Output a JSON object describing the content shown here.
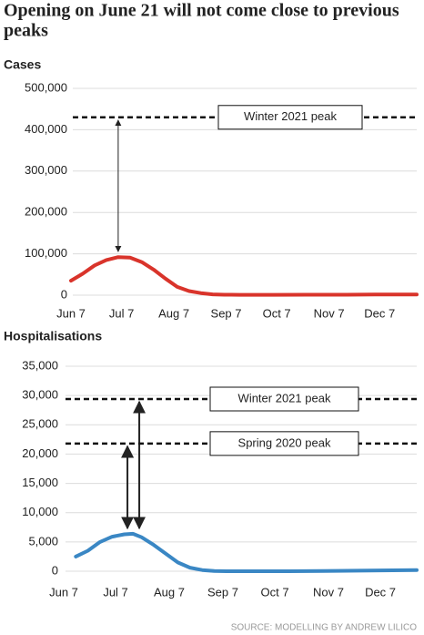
{
  "title": "Opening on June 21 will not come close to previous peaks",
  "source": "SOURCE: MODELLING BY ANDREW LILICO",
  "chart_data": [
    {
      "type": "line",
      "title": "Cases",
      "x": [
        0,
        7,
        14,
        21,
        28,
        35,
        42,
        49,
        56,
        63,
        70,
        77,
        84,
        91,
        100,
        120,
        140,
        160,
        180,
        205
      ],
      "series": [
        {
          "color": "#d9342b",
          "values": [
            35000,
            52000,
            72000,
            85000,
            92000,
            91000,
            80000,
            62000,
            40000,
            20000,
            10000,
            5000,
            2000,
            1000,
            800,
            800,
            1000,
            1200,
            1500,
            1800
          ]
        }
      ],
      "xlim": [
        0,
        205
      ],
      "xticks": [
        {
          "value": 0,
          "label": "Jun 7"
        },
        {
          "value": 30,
          "label": "Jul 7"
        },
        {
          "value": 61,
          "label": "Aug 7"
        },
        {
          "value": 92,
          "label": "Sep 7"
        },
        {
          "value": 122,
          "label": "Oct 7"
        },
        {
          "value": 153,
          "label": "Nov 7"
        },
        {
          "value": 183,
          "label": "Dec 7"
        }
      ],
      "ylim": [
        0,
        500000
      ],
      "yticks": [
        0,
        {
          "value": 100000,
          "label": "100,000"
        },
        {
          "value": 200000,
          "label": "200,000"
        },
        {
          "value": 300000,
          "label": "300,000"
        },
        {
          "value": 400000,
          "label": "400,000"
        },
        {
          "value": 500000,
          "label": "500,000"
        }
      ],
      "grid": true,
      "reference_lines": [
        {
          "label": "Winter 2021 peak",
          "value": 430000
        }
      ]
    },
    {
      "type": "line",
      "title": "Hospitalisations",
      "x": [
        7,
        14,
        21,
        28,
        35,
        40,
        45,
        52,
        59,
        66,
        73,
        80,
        87,
        94,
        110,
        130,
        150,
        170,
        190,
        204
      ],
      "series": [
        {
          "color": "#3a87c4",
          "values": [
            2500,
            3500,
            5000,
            5900,
            6300,
            6400,
            5800,
            4500,
            3000,
            1500,
            600,
            200,
            50,
            0,
            0,
            0,
            50,
            100,
            150,
            200
          ]
        }
      ],
      "xlim": [
        0,
        204
      ],
      "xticks": [
        {
          "value": 0,
          "label": "Jun 7"
        },
        {
          "value": 30,
          "label": "Jul 7"
        },
        {
          "value": 61,
          "label": "Aug 7"
        },
        {
          "value": 92,
          "label": "Sep 7"
        },
        {
          "value": 122,
          "label": "Oct 7"
        },
        {
          "value": 153,
          "label": "Nov 7"
        },
        {
          "value": 183,
          "label": "Dec 7"
        }
      ],
      "ylim": [
        0,
        35000
      ],
      "yticks": [
        0,
        {
          "value": 5000,
          "label": "5,000"
        },
        {
          "value": 10000,
          "label": "10,000"
        },
        {
          "value": 15000,
          "label": "15,000"
        },
        {
          "value": 20000,
          "label": "20,000"
        },
        {
          "value": 25000,
          "label": "25,000"
        },
        {
          "value": 30000,
          "label": "30,000"
        },
        {
          "value": 35000,
          "label": "35,000"
        }
      ],
      "grid": true,
      "reference_lines": [
        {
          "label": "Winter 2021 peak",
          "value": 29400
        },
        {
          "label": "Spring 2020 peak",
          "value": 21800
        }
      ]
    }
  ]
}
